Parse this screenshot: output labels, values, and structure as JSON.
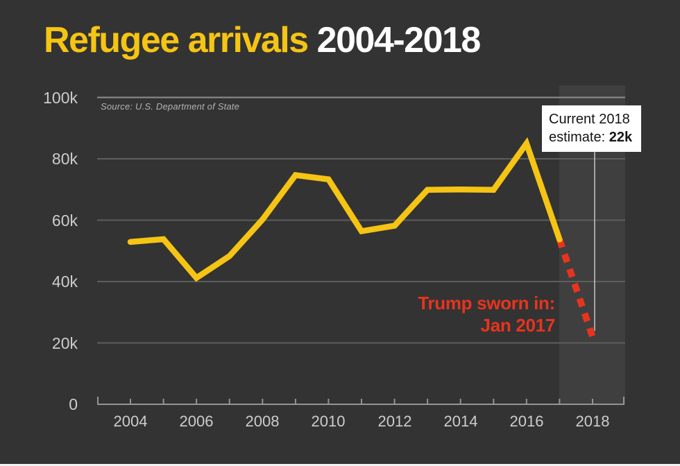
{
  "page": {
    "background_color": "#333333",
    "accent_yellow": "#f5c414",
    "accent_red": "#e8341e"
  },
  "title": {
    "highlight": "Refugee arrivals",
    "rest": "2004-2018",
    "highlight_color": "#f5c414",
    "rest_color": "#ffffff"
  },
  "source_note": "Source: U.S. Department of State",
  "annotations": {
    "trump": {
      "line1": "Trump sworn in:",
      "line2": "Jan 2017",
      "color": "#e8341e"
    },
    "callout": {
      "line1": "Current 2018",
      "line2_prefix": "estimate: ",
      "line2_value": "22k"
    }
  },
  "chart_data": {
    "type": "line",
    "title": "Refugee arrivals 2004-2018",
    "units": "thousands of refugee arrivals per year",
    "x": [
      2004,
      2005,
      2006,
      2007,
      2008,
      2009,
      2010,
      2011,
      2012,
      2013,
      2014,
      2015,
      2016,
      2017
    ],
    "values": [
      52.9,
      53.8,
      41.2,
      48.3,
      60.2,
      74.7,
      73.3,
      56.4,
      58.2,
      69.9,
      70.0,
      69.9,
      85.0,
      53.7
    ],
    "estimate": {
      "x": 2018,
      "value": 22,
      "label": "22k",
      "style": "dashed"
    },
    "ylim": [
      0,
      100
    ],
    "yticks": [
      0,
      20,
      40,
      60,
      80,
      100
    ],
    "yticklabels": [
      "0",
      "20k",
      "40k",
      "60k",
      "80k",
      "100k"
    ],
    "xticklabels": [
      "2004",
      "2006",
      "2008",
      "2010",
      "2012",
      "2014",
      "2016",
      "2018"
    ],
    "grid": true,
    "legend": "none",
    "line_color": "#f5c414",
    "projection_color": "#e8341e",
    "grid_color": "#5e5e5e",
    "top_grid_color": "#8f8f8f",
    "axis_color": "#949494",
    "tick_label_color": "#cdcdcd",
    "highlight_band_color": "#3f3f3f"
  }
}
